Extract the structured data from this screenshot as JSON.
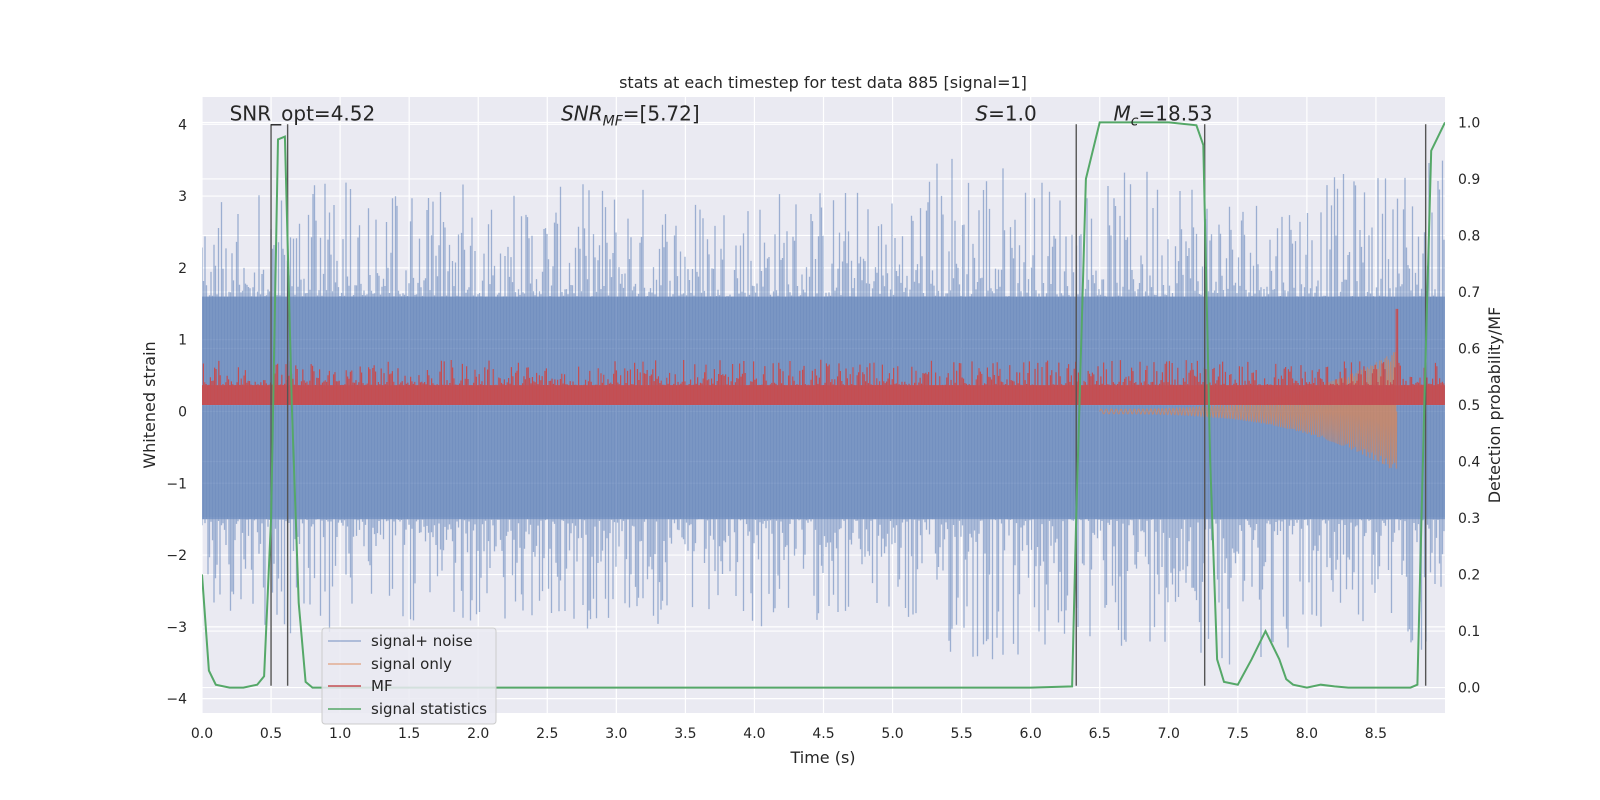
{
  "chart_data": {
    "type": "line",
    "title": "stats at each timestep for test data 885 [signal=1]",
    "xlabel": "Time (s)",
    "ylabel": "Whitened strain",
    "ylabel_right": "Detection probability/MF",
    "xlim": [
      0.0,
      9.0
    ],
    "ylim": [
      -4.2,
      4.38
    ],
    "ylim_right": [
      -0.045,
      1.045
    ],
    "x_ticks": [
      0.0,
      0.5,
      1.0,
      1.5,
      2.0,
      2.5,
      3.0,
      3.5,
      4.0,
      4.5,
      5.0,
      5.5,
      6.0,
      6.5,
      7.0,
      7.5,
      8.0,
      8.5
    ],
    "x_tick_labels": [
      "0.0",
      "0.5",
      "1.0",
      "1.5",
      "2.0",
      "2.5",
      "3.0",
      "3.5",
      "4.0",
      "4.5",
      "5.0",
      "5.5",
      "6.0",
      "6.5",
      "7.0",
      "7.5",
      "8.0",
      "8.5"
    ],
    "y_ticks": [
      -4,
      -3,
      -2,
      -1,
      0,
      1,
      2,
      3,
      4
    ],
    "y_tick_labels": [
      "−4",
      "−3",
      "−2",
      "−1",
      "0",
      "1",
      "2",
      "3",
      "4"
    ],
    "y_right_ticks": [
      0.0,
      0.1,
      0.2,
      0.3,
      0.4,
      0.5,
      0.6,
      0.7,
      0.8,
      0.9,
      1.0
    ],
    "y_right_tick_labels": [
      "0.0",
      "0.1",
      "0.2",
      "0.3",
      "0.4",
      "0.5",
      "0.6",
      "0.7",
      "0.8",
      "0.9",
      "1.0"
    ],
    "grid": true,
    "legend_position": "lower-left",
    "annotations": [
      {
        "text": "SNR_opt=4.52",
        "x": 0.2,
        "y": 4.05
      },
      {
        "text": "SNR_MF=[5.72]",
        "x": 2.6,
        "y": 4.05
      },
      {
        "text": "S=1.0",
        "x": 5.6,
        "y": 4.05
      },
      {
        "text": "M_c=18.53",
        "x": 6.6,
        "y": 4.05
      }
    ],
    "series": [
      {
        "name": "signal+ noise",
        "color": "#4c72b0",
        "alpha": 0.5,
        "envelope_x": [
          0.0,
          0.5,
          1.0,
          1.5,
          2.0,
          2.5,
          3.0,
          3.5,
          4.0,
          4.5,
          5.0,
          5.5,
          6.0,
          6.5,
          7.0,
          7.5,
          8.0,
          8.5,
          9.0
        ],
        "envelope_max": [
          2.95,
          3.05,
          3.3,
          3.2,
          3.3,
          3.1,
          3.3,
          3.1,
          3.2,
          3.2,
          3.1,
          3.95,
          3.35,
          3.15,
          3.7,
          3.15,
          3.25,
          3.4,
          3.85
        ],
        "envelope_min": [
          -2.6,
          -3.1,
          -3.25,
          -3.0,
          -2.9,
          -3.3,
          -2.9,
          -3.2,
          -3.1,
          -2.9,
          -3.0,
          -3.6,
          -3.7,
          -3.4,
          -3.2,
          -3.6,
          -3.3,
          -3.0,
          -3.7
        ],
        "band_top": 1.6,
        "band_bottom": -1.5
      },
      {
        "name": "signal only",
        "color": "#dd8452",
        "chirp_start": 6.5,
        "chirp_end": 8.65,
        "peak_amplitude": 0.85
      },
      {
        "name": "MF",
        "color": "#c44e52",
        "axis": "right",
        "baseline": 0.5,
        "band_top": 0.535,
        "typical_peak": 0.565,
        "max_peak": 0.67,
        "max_peak_x": 8.65
      },
      {
        "name": "signal statistics",
        "color": "#55a868",
        "axis": "right",
        "x": [
          0.0,
          0.05,
          0.1,
          0.2,
          0.3,
          0.4,
          0.45,
          0.5,
          0.55,
          0.6,
          0.65,
          0.7,
          0.75,
          0.8,
          1.0,
          2.0,
          3.0,
          4.0,
          5.0,
          6.0,
          6.3,
          6.33,
          6.4,
          6.5,
          6.6,
          7.0,
          7.2,
          7.25,
          7.3,
          7.35,
          7.4,
          7.5,
          7.6,
          7.7,
          7.8,
          7.85,
          7.9,
          8.0,
          8.1,
          8.2,
          8.3,
          8.5,
          8.75,
          8.8,
          8.85,
          8.9,
          9.0
        ],
        "y": [
          0.2,
          0.03,
          0.005,
          0.0,
          0.0,
          0.005,
          0.02,
          0.3,
          0.97,
          0.975,
          0.5,
          0.15,
          0.01,
          0.0,
          0.0,
          0.0,
          0.0,
          0.0,
          0.0,
          0.0,
          0.002,
          0.3,
          0.9,
          1.0,
          1.0,
          1.0,
          0.995,
          0.96,
          0.4,
          0.05,
          0.01,
          0.005,
          0.05,
          0.1,
          0.05,
          0.015,
          0.005,
          0.0,
          0.005,
          0.002,
          0.0,
          0.0,
          0.0,
          0.005,
          0.5,
          0.95,
          1.0
        ]
      }
    ],
    "vertical_markers_x": [
      0.5,
      0.62,
      6.33,
      7.26,
      8.86
    ]
  }
}
